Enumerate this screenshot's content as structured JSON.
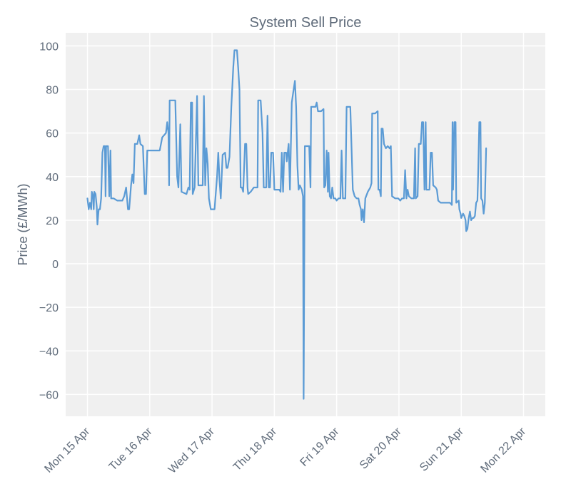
{
  "chart_data": {
    "type": "line",
    "title": "System Sell Price",
    "xlabel": "",
    "ylabel": "Price (£/MWh)",
    "ylim": [
      -70,
      106
    ],
    "yticks": [
      -60,
      -40,
      -20,
      0,
      20,
      40,
      60,
      80,
      100
    ],
    "xlim": [
      -0.35,
      7.35
    ],
    "xtick_labels": [
      "Mon 15 Apr",
      "Tue 16 Apr",
      "Wed 17 Apr",
      "Thu 18 Apr",
      "Fri 19 Apr",
      "Sat 20 Apr",
      "Sun 21 Apr",
      "Mon 22 Apr"
    ],
    "grid": true,
    "colors": {
      "line": "#5b9bd5",
      "plot_bg": "#f0f0f0",
      "grid": "#ffffff",
      "text": "#5f6b7a"
    },
    "series": [
      {
        "name": "",
        "points": [
          [
            0.0,
            30
          ],
          [
            0.02,
            25
          ],
          [
            0.04,
            28
          ],
          [
            0.06,
            25
          ],
          [
            0.07,
            33
          ],
          [
            0.09,
            31
          ],
          [
            0.1,
            25
          ],
          [
            0.11,
            33
          ],
          [
            0.13,
            32
          ],
          [
            0.15,
            26
          ],
          [
            0.16,
            18
          ],
          [
            0.18,
            25
          ],
          [
            0.2,
            25
          ],
          [
            0.22,
            30
          ],
          [
            0.24,
            51
          ],
          [
            0.26,
            54
          ],
          [
            0.28,
            54
          ],
          [
            0.29,
            31
          ],
          [
            0.3,
            54
          ],
          [
            0.33,
            54
          ],
          [
            0.35,
            31
          ],
          [
            0.37,
            52
          ],
          [
            0.38,
            30
          ],
          [
            0.42,
            30
          ],
          [
            0.48,
            29
          ],
          [
            0.56,
            29
          ],
          [
            0.59,
            31
          ],
          [
            0.62,
            35
          ],
          [
            0.65,
            25
          ],
          [
            0.67,
            25
          ],
          [
            0.7,
            36
          ],
          [
            0.72,
            41
          ],
          [
            0.74,
            37
          ],
          [
            0.76,
            55
          ],
          [
            0.8,
            55
          ],
          [
            0.83,
            59
          ],
          [
            0.85,
            55
          ],
          [
            0.89,
            54
          ],
          [
            0.92,
            32
          ],
          [
            0.94,
            32
          ],
          [
            0.96,
            52
          ],
          [
            1.04,
            52
          ],
          [
            1.16,
            52
          ],
          [
            1.2,
            58
          ],
          [
            1.26,
            60
          ],
          [
            1.28,
            65
          ],
          [
            1.3,
            60
          ],
          [
            1.31,
            36
          ],
          [
            1.32,
            75
          ],
          [
            1.41,
            75
          ],
          [
            1.44,
            40
          ],
          [
            1.46,
            35
          ],
          [
            1.49,
            64
          ],
          [
            1.51,
            33
          ],
          [
            1.59,
            32
          ],
          [
            1.62,
            35
          ],
          [
            1.64,
            34
          ],
          [
            1.66,
            74
          ],
          [
            1.68,
            74
          ],
          [
            1.69,
            32
          ],
          [
            1.72,
            35
          ],
          [
            1.76,
            77
          ],
          [
            1.78,
            36
          ],
          [
            1.85,
            36
          ],
          [
            1.87,
            77
          ],
          [
            1.89,
            36
          ],
          [
            1.91,
            53
          ],
          [
            1.93,
            46
          ],
          [
            1.95,
            30
          ],
          [
            1.98,
            25
          ],
          [
            2.04,
            25
          ],
          [
            2.08,
            40
          ],
          [
            2.1,
            51
          ],
          [
            2.12,
            38
          ],
          [
            2.14,
            30
          ],
          [
            2.17,
            50
          ],
          [
            2.21,
            51
          ],
          [
            2.23,
            44
          ],
          [
            2.25,
            44
          ],
          [
            2.28,
            49
          ],
          [
            2.31,
            72
          ],
          [
            2.34,
            90
          ],
          [
            2.36,
            98
          ],
          [
            2.4,
            98
          ],
          [
            2.42,
            90
          ],
          [
            2.44,
            80
          ],
          [
            2.46,
            35
          ],
          [
            2.48,
            35
          ],
          [
            2.5,
            33
          ],
          [
            2.53,
            55
          ],
          [
            2.55,
            55
          ],
          [
            2.57,
            35
          ],
          [
            2.58,
            32
          ],
          [
            2.62,
            33
          ],
          [
            2.67,
            35
          ],
          [
            2.73,
            35
          ],
          [
            2.74,
            75
          ],
          [
            2.78,
            75
          ],
          [
            2.81,
            60
          ],
          [
            2.83,
            35
          ],
          [
            2.87,
            35
          ],
          [
            2.89,
            68
          ],
          [
            2.91,
            35
          ],
          [
            2.93,
            35
          ],
          [
            2.95,
            51
          ],
          [
            2.98,
            51
          ],
          [
            3.0,
            34
          ],
          [
            3.08,
            34
          ],
          [
            3.1,
            33
          ],
          [
            3.12,
            51
          ],
          [
            3.14,
            33
          ],
          [
            3.16,
            51
          ],
          [
            3.19,
            51
          ],
          [
            3.2,
            47
          ],
          [
            3.23,
            55
          ],
          [
            3.25,
            34
          ],
          [
            3.28,
            74
          ],
          [
            3.31,
            80
          ],
          [
            3.33,
            84
          ],
          [
            3.35,
            72
          ],
          [
            3.37,
            45
          ],
          [
            3.39,
            34
          ],
          [
            3.41,
            36
          ],
          [
            3.44,
            34
          ],
          [
            3.46,
            31
          ],
          [
            3.47,
            -62
          ],
          [
            3.49,
            54
          ],
          [
            3.51,
            54
          ],
          [
            3.56,
            54
          ],
          [
            3.58,
            35
          ],
          [
            3.59,
            72
          ],
          [
            3.62,
            72
          ],
          [
            3.66,
            72
          ],
          [
            3.68,
            74
          ],
          [
            3.7,
            70
          ],
          [
            3.75,
            70
          ],
          [
            3.79,
            71
          ],
          [
            3.8,
            35
          ],
          [
            3.82,
            36
          ],
          [
            3.84,
            52
          ],
          [
            3.86,
            33
          ],
          [
            3.87,
            51
          ],
          [
            3.89,
            31
          ],
          [
            3.91,
            30
          ],
          [
            3.93,
            35
          ],
          [
            3.95,
            30
          ],
          [
            3.98,
            30
          ],
          [
            4.0,
            29
          ],
          [
            4.03,
            30
          ],
          [
            4.06,
            30
          ],
          [
            4.08,
            52
          ],
          [
            4.1,
            30
          ],
          [
            4.14,
            30
          ],
          [
            4.16,
            72
          ],
          [
            4.22,
            72
          ],
          [
            4.26,
            34
          ],
          [
            4.29,
            31
          ],
          [
            4.32,
            30
          ],
          [
            4.35,
            30
          ],
          [
            4.37,
            27
          ],
          [
            4.39,
            25
          ],
          [
            4.4,
            20
          ],
          [
            4.42,
            25
          ],
          [
            4.44,
            19
          ],
          [
            4.46,
            30
          ],
          [
            4.5,
            33
          ],
          [
            4.54,
            35
          ],
          [
            4.56,
            37
          ],
          [
            4.57,
            69
          ],
          [
            4.62,
            69
          ],
          [
            4.66,
            70
          ],
          [
            4.67,
            34
          ],
          [
            4.69,
            34
          ],
          [
            4.71,
            31
          ],
          [
            4.72,
            62
          ],
          [
            4.74,
            62
          ],
          [
            4.76,
            55
          ],
          [
            4.79,
            53
          ],
          [
            4.82,
            54
          ],
          [
            4.85,
            53
          ],
          [
            4.87,
            54
          ],
          [
            4.89,
            31
          ],
          [
            4.94,
            30
          ],
          [
            4.99,
            30
          ],
          [
            5.02,
            29
          ],
          [
            5.05,
            30
          ],
          [
            5.08,
            30
          ],
          [
            5.1,
            43
          ],
          [
            5.12,
            30
          ],
          [
            5.14,
            34
          ],
          [
            5.16,
            31
          ],
          [
            5.2,
            30
          ],
          [
            5.24,
            30
          ],
          [
            5.26,
            53
          ],
          [
            5.27,
            30
          ],
          [
            5.3,
            31
          ],
          [
            5.32,
            55
          ],
          [
            5.35,
            55
          ],
          [
            5.37,
            65
          ],
          [
            5.39,
            65
          ],
          [
            5.41,
            34
          ],
          [
            5.43,
            65
          ],
          [
            5.44,
            34
          ],
          [
            5.47,
            34
          ],
          [
            5.49,
            34
          ],
          [
            5.51,
            51
          ],
          [
            5.53,
            51
          ],
          [
            5.55,
            36
          ],
          [
            5.59,
            35
          ],
          [
            5.61,
            34
          ],
          [
            5.63,
            29
          ],
          [
            5.67,
            28
          ],
          [
            5.7,
            28
          ],
          [
            5.74,
            28
          ],
          [
            5.77,
            28
          ],
          [
            5.79,
            28
          ],
          [
            5.82,
            28
          ],
          [
            5.85,
            27
          ],
          [
            5.86,
            65
          ],
          [
            5.87,
            34
          ],
          [
            5.89,
            65
          ],
          [
            5.91,
            65
          ],
          [
            5.92,
            28
          ],
          [
            5.96,
            29
          ],
          [
            5.97,
            25
          ],
          [
            5.99,
            23
          ],
          [
            6.0,
            21
          ],
          [
            6.03,
            23
          ],
          [
            6.05,
            22
          ],
          [
            6.07,
            20
          ],
          [
            6.08,
            15
          ],
          [
            6.1,
            16
          ],
          [
            6.12,
            21
          ],
          [
            6.14,
            24
          ],
          [
            6.16,
            20
          ],
          [
            6.18,
            21
          ],
          [
            6.2,
            21
          ],
          [
            6.22,
            22
          ],
          [
            6.24,
            28
          ],
          [
            6.26,
            29
          ],
          [
            6.27,
            38
          ],
          [
            6.29,
            65
          ],
          [
            6.31,
            65
          ],
          [
            6.32,
            30
          ],
          [
            6.34,
            29
          ],
          [
            6.36,
            23
          ],
          [
            6.38,
            28
          ],
          [
            6.4,
            53
          ]
        ]
      }
    ]
  }
}
